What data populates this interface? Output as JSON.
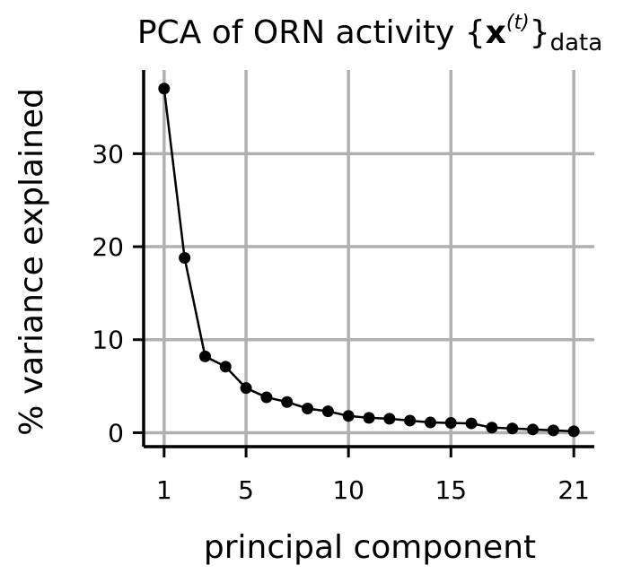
{
  "chart_data": {
    "type": "line",
    "title": {
      "prefix": "PCA of ORN activity {",
      "bold": "x",
      "superscript": "(t)",
      "brace": "}",
      "subscript": "data"
    },
    "xlabel": "principal component",
    "ylabel": "% variance explained",
    "xlim": [
      0,
      22
    ],
    "ylim": [
      -1.5,
      39
    ],
    "x_ticks": [
      1,
      5,
      10,
      15,
      21
    ],
    "y_ticks": [
      0,
      10,
      20,
      30
    ],
    "grid": true,
    "series": [
      {
        "x": [
          1,
          2,
          3,
          4,
          5,
          6,
          7,
          8,
          9,
          10,
          11,
          12,
          13,
          14,
          15,
          16,
          17,
          18,
          19,
          20,
          21
        ],
        "values": [
          37.0,
          18.8,
          8.2,
          7.1,
          4.8,
          3.8,
          3.3,
          2.6,
          2.3,
          1.8,
          1.6,
          1.5,
          1.3,
          1.1,
          1.05,
          1.0,
          0.55,
          0.45,
          0.35,
          0.25,
          0.15
        ],
        "color": "#000000"
      }
    ]
  }
}
